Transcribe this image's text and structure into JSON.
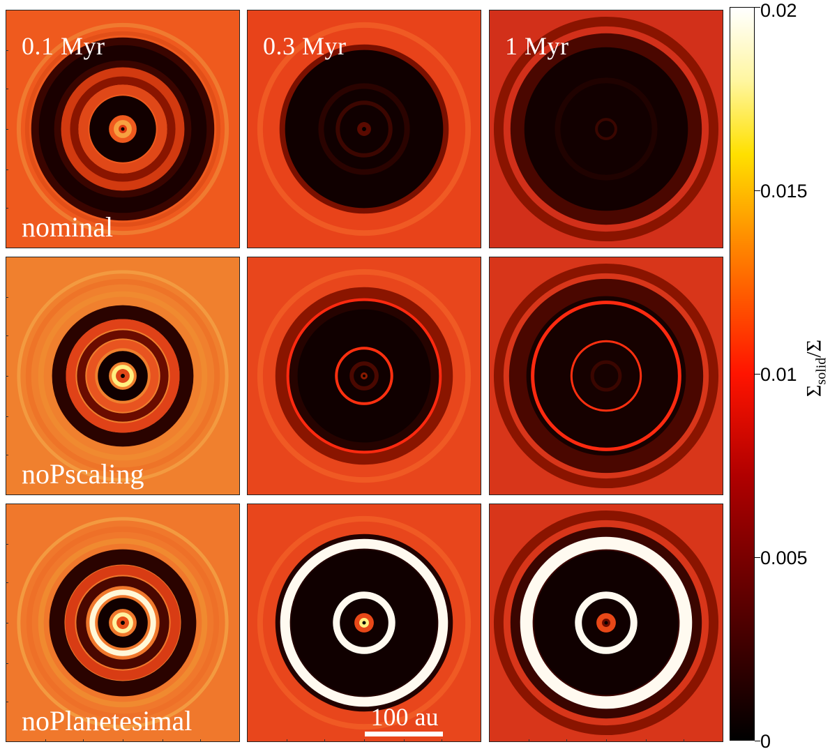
{
  "chart_data": {
    "type": "heatmap",
    "times": [
      "0.1 Myr",
      "0.3 Myr",
      "1 Myr"
    ],
    "models": [
      "nominal",
      "noPscaling",
      "noPlanetesimal"
    ],
    "scale_bar": "100 au",
    "colorbar": {
      "label": "Σsolid/Σ",
      "label_main": "Σ",
      "label_sub": "solid",
      "label_tail": "/Σ",
      "ticks": [
        "0",
        "0.005",
        "0.01",
        "0.015",
        "0.02"
      ],
      "range": [
        0,
        0.02
      ],
      "colormap": "hot"
    }
  }
}
